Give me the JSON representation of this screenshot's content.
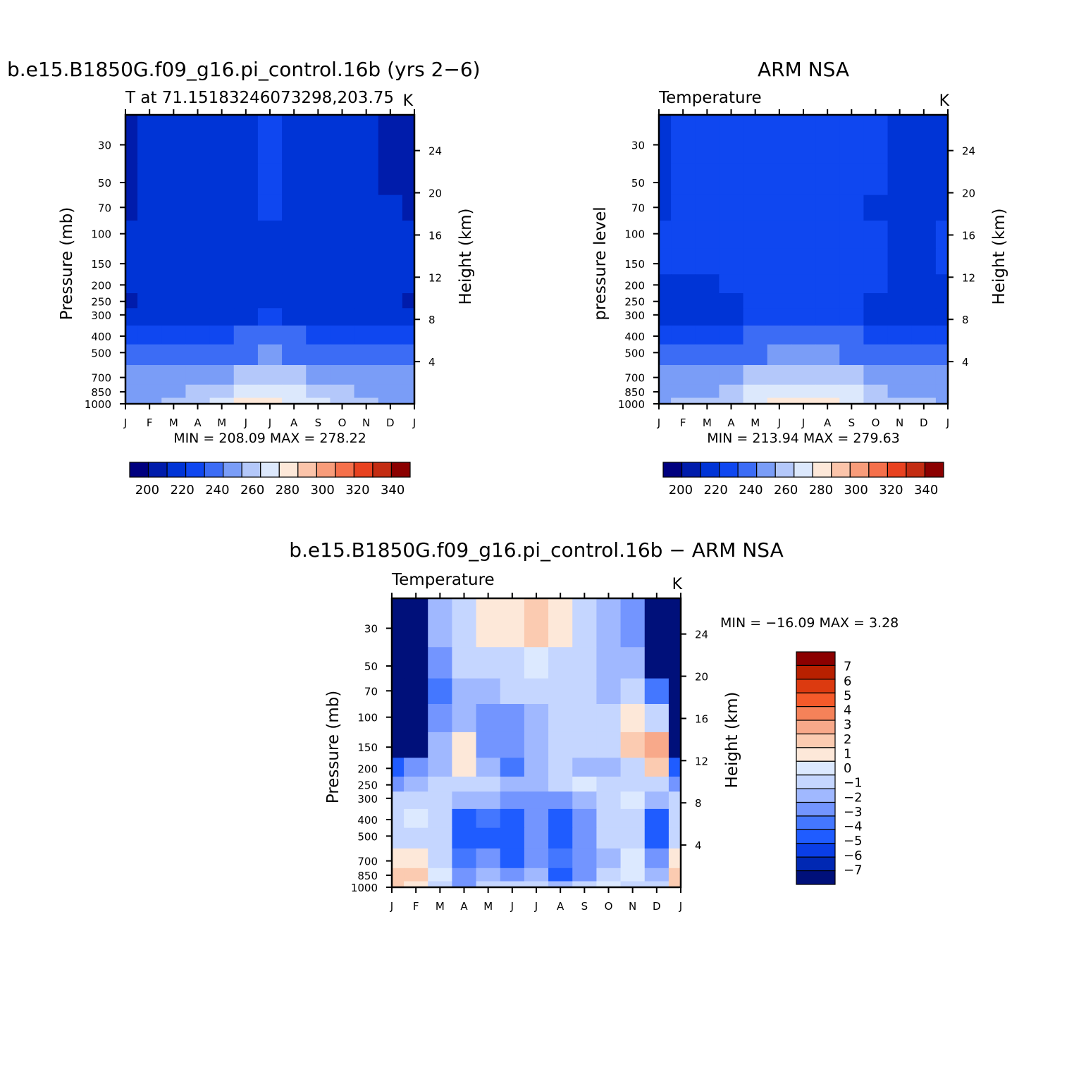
{
  "colors": {
    "model_scale": [
      "#00007f",
      "#001cab",
      "#0034d6",
      "#0f47f0",
      "#3c6cf5",
      "#7a9df7",
      "#b4c8fa",
      "#dce8fc",
      "#fde8d9",
      "#fbc4aa",
      "#f89c7a",
      "#f5704b",
      "#e84220",
      "#c32c12",
      "#8b0000"
    ],
    "diff_scale": [
      "#00107a",
      "#0028b3",
      "#0a3ee6",
      "#1f5cff",
      "#4477ff",
      "#7395ff",
      "#a0b8ff",
      "#c5d6ff",
      "#dce9ff",
      "#fde8d9",
      "#fbcbb1",
      "#f8a98a",
      "#f58259",
      "#f55a2a",
      "#dc3a10",
      "#b82000",
      "#8b0000"
    ]
  },
  "chart_data": [
    {
      "type": "heatmap",
      "title": "b.e15.B1850G.f09_g16.pi_control.16b (yrs 2−6)",
      "subtitle": "T at 71.15183246073298,203.75",
      "units": "K",
      "ylabel": "Pressure (mb)",
      "ylabel_right": "Height (km)",
      "x_ticks": [
        "J",
        "F",
        "M",
        "A",
        "M",
        "J",
        "J",
        "A",
        "S",
        "O",
        "N",
        "D",
        "J"
      ],
      "y_ticks": [
        "30",
        "50",
        "70",
        "100",
        "150",
        "200",
        "250",
        "300",
        "400",
        "500",
        "700",
        "850",
        "1000"
      ],
      "y_ticks_right": [
        "24",
        "20",
        "16",
        "12",
        "8",
        "4"
      ],
      "stats": "MIN = 208.09 MAX = 278.22",
      "min": 208.09,
      "max": 278.22,
      "colorbar_labels": [
        "200",
        "220",
        "240",
        "260",
        "280",
        "300",
        "320",
        "340"
      ],
      "colorbar_range": [
        190,
        350
      ],
      "pressure_levels": [
        30,
        50,
        70,
        100,
        150,
        200,
        250,
        300,
        400,
        500,
        700,
        850,
        1000
      ],
      "months": [
        "Jan",
        "Feb",
        "Mar",
        "Apr",
        "May",
        "Jun",
        "Jul",
        "Aug",
        "Sep",
        "Oct",
        "Nov",
        "Dec",
        "Jan"
      ],
      "values": [
        [
          208,
          212,
          216,
          218,
          219,
          220,
          222,
          221,
          219,
          216,
          213,
          210,
          208
        ],
        [
          210,
          213,
          217,
          219,
          220,
          221,
          222,
          221,
          219,
          217,
          214,
          211,
          210
        ],
        [
          211,
          214,
          218,
          219,
          220,
          221,
          222,
          221,
          220,
          218,
          215,
          212,
          211
        ],
        [
          212,
          214,
          218,
          219,
          220,
          221,
          221,
          221,
          220,
          219,
          216,
          213,
          212
        ],
        [
          213,
          214,
          216,
          218,
          219,
          220,
          221,
          221,
          220,
          219,
          217,
          214,
          213
        ],
        [
          212,
          213,
          214,
          216,
          218,
          219,
          220,
          220,
          219,
          218,
          216,
          213,
          212
        ],
        [
          211,
          212,
          213,
          215,
          217,
          219,
          220,
          219,
          218,
          216,
          214,
          212,
          211
        ],
        [
          213,
          214,
          215,
          217,
          219,
          221,
          222,
          221,
          219,
          217,
          215,
          214,
          213
        ],
        [
          225,
          226,
          227,
          229,
          232,
          235,
          236,
          235,
          232,
          229,
          227,
          226,
          225
        ],
        [
          233,
          234,
          235,
          237,
          240,
          243,
          244,
          243,
          240,
          237,
          235,
          234,
          233
        ],
        [
          244,
          245,
          246,
          248,
          252,
          256,
          258,
          256,
          252,
          248,
          246,
          245,
          244
        ],
        [
          249,
          250,
          252,
          256,
          262,
          268,
          270,
          268,
          262,
          256,
          252,
          250,
          249
        ],
        [
          252,
          253,
          256,
          262,
          270,
          276,
          278,
          275,
          268,
          260,
          255,
          253,
          252
        ]
      ]
    },
    {
      "type": "heatmap",
      "title": "ARM NSA",
      "subtitle": "Temperature",
      "units": "K",
      "ylabel": "pressure level",
      "ylabel_right": "Height (km)",
      "x_ticks": [
        "J",
        "F",
        "M",
        "A",
        "M",
        "J",
        "J",
        "A",
        "S",
        "O",
        "N",
        "D",
        "J"
      ],
      "y_ticks": [
        "30",
        "50",
        "70",
        "100",
        "150",
        "200",
        "250",
        "300",
        "400",
        "500",
        "700",
        "850",
        "1000"
      ],
      "y_ticks_right": [
        "24",
        "20",
        "16",
        "12",
        "8",
        "4"
      ],
      "stats": "MIN = 213.94 MAX = 279.63",
      "min": 213.94,
      "max": 279.63,
      "colorbar_labels": [
        "200",
        "220",
        "240",
        "260",
        "280",
        "300",
        "320",
        "340"
      ],
      "colorbar_range": [
        190,
        350
      ],
      "pressure_levels": [
        30,
        50,
        70,
        100,
        150,
        200,
        250,
        300,
        400,
        500,
        700,
        850,
        1000
      ],
      "months": [
        "Jan",
        "Feb",
        "Mar",
        "Apr",
        "May",
        "Jun",
        "Jul",
        "Aug",
        "Sep",
        "Oct",
        "Nov",
        "Dec",
        "Jan"
      ],
      "values": [
        [
          219,
          222,
          224,
          225,
          226,
          227,
          231,
          227,
          226,
          224,
          218,
          214,
          219
        ],
        [
          220,
          222,
          223,
          224,
          225,
          226,
          227,
          226,
          225,
          222,
          217,
          215,
          220
        ],
        [
          221,
          222,
          223,
          224,
          225,
          226,
          226,
          226,
          225,
          221,
          216,
          215,
          221
        ],
        [
          222,
          223,
          224,
          224,
          225,
          226,
          226,
          226,
          225,
          222,
          217,
          216,
          222
        ],
        [
          222,
          223,
          224,
          224,
          225,
          226,
          226,
          226,
          225,
          223,
          218,
          217,
          222
        ],
        [
          218,
          219,
          221,
          223,
          224,
          225,
          226,
          225,
          224,
          222,
          218,
          216,
          218
        ],
        [
          214,
          215,
          217,
          220,
          222,
          224,
          224,
          224,
          222,
          219,
          216,
          214,
          214
        ],
        [
          215,
          216,
          218,
          221,
          223,
          225,
          226,
          225,
          223,
          220,
          217,
          215,
          215
        ],
        [
          226,
          227,
          228,
          231,
          234,
          237,
          238,
          237,
          234,
          231,
          228,
          227,
          226
        ],
        [
          234,
          235,
          236,
          239,
          242,
          245,
          246,
          245,
          242,
          239,
          236,
          235,
          234
        ],
        [
          245,
          246,
          248,
          251,
          255,
          259,
          260,
          259,
          255,
          251,
          248,
          246,
          245
        ],
        [
          250,
          251,
          253,
          258,
          265,
          270,
          272,
          270,
          265,
          258,
          253,
          251,
          250
        ],
        [
          253,
          254,
          257,
          263,
          271,
          278,
          279,
          277,
          270,
          262,
          256,
          254,
          253
        ]
      ]
    },
    {
      "type": "heatmap",
      "title": "b.e15.B1850G.f09_g16.pi_control.16b − ARM NSA",
      "subtitle": "Temperature",
      "units": "K",
      "ylabel": "Pressure (mb)",
      "ylabel_right": "Height (km)",
      "x_ticks": [
        "J",
        "F",
        "M",
        "A",
        "M",
        "J",
        "J",
        "A",
        "S",
        "O",
        "N",
        "D",
        "J"
      ],
      "y_ticks": [
        "30",
        "50",
        "70",
        "100",
        "150",
        "200",
        "250",
        "300",
        "400",
        "500",
        "700",
        "850",
        "1000"
      ],
      "y_ticks_right": [
        "24",
        "20",
        "16",
        "12",
        "8",
        "4"
      ],
      "stats": "MIN = −16.09 MAX = 3.28",
      "min": -16.09,
      "max": 3.28,
      "colorbar_labels": [
        "7",
        "6",
        "5",
        "4",
        "3",
        "2",
        "1",
        "0",
        "−1",
        "−2",
        "−3",
        "−4",
        "−5",
        "−6",
        "−7"
      ],
      "colorbar_range": [
        -8,
        8
      ],
      "pressure_levels": [
        30,
        50,
        70,
        100,
        150,
        200,
        250,
        300,
        400,
        500,
        700,
        850,
        1000
      ],
      "months": [
        "Jan",
        "Feb",
        "Mar",
        "Apr",
        "May",
        "Jun",
        "Jul",
        "Aug",
        "Sep",
        "Oct",
        "Nov",
        "Dec",
        "Jan"
      ],
      "values": [
        [
          -16,
          -14,
          -2,
          -1,
          0.5,
          0.5,
          2,
          0.5,
          -1,
          -2,
          -3,
          -10,
          -16
        ],
        [
          -16,
          -14,
          -3,
          -1,
          -1,
          -0.5,
          0,
          -0.5,
          -1,
          -2,
          -2,
          -8,
          -16
        ],
        [
          -15,
          -13,
          -4,
          -2,
          -1.5,
          -1,
          -1,
          -1,
          -1,
          -2,
          -1,
          -4,
          -15
        ],
        [
          -14,
          -11,
          -3,
          -1.5,
          -3,
          -2.5,
          -1.5,
          -1,
          -0.5,
          -1,
          0.5,
          -1,
          -14
        ],
        [
          -9,
          -8,
          -2,
          1,
          -3,
          -2.5,
          -2,
          -1,
          -1,
          -1,
          2,
          3,
          -9
        ],
        [
          -5,
          -3,
          -1.5,
          0.5,
          -2,
          -3.5,
          -2,
          -1,
          -1.5,
          -2,
          -0.5,
          2,
          -5
        ],
        [
          -3,
          -2,
          -1,
          -0.5,
          -1,
          -1.5,
          -2,
          -1,
          0,
          -1,
          -0.5,
          -0.5,
          -3
        ],
        [
          -1,
          -0.5,
          -1,
          -2,
          -2,
          -3,
          -3,
          -3,
          -2,
          -1,
          0,
          -2,
          -1
        ],
        [
          -0.5,
          0,
          -1,
          -5,
          -4,
          -5,
          -3,
          -5,
          -3,
          -1,
          -1,
          -5,
          -0.5
        ],
        [
          -0.5,
          -0.5,
          -1,
          -5,
          -5,
          -4.5,
          -3,
          -4.5,
          -3,
          -1,
          -1,
          -5,
          -0.5
        ],
        [
          1,
          0.5,
          -0.5,
          -4,
          -3,
          -5,
          -3,
          -4,
          -3,
          -2,
          0,
          -3,
          1
        ],
        [
          2,
          1.5,
          0,
          -3,
          -2,
          -3,
          -2,
          -5,
          -3,
          -1,
          0,
          -2,
          2
        ],
        [
          2,
          1,
          -1,
          -3,
          -1,
          -1,
          -1,
          -2,
          -1,
          0,
          -0.5,
          -1,
          2
        ]
      ]
    }
  ]
}
